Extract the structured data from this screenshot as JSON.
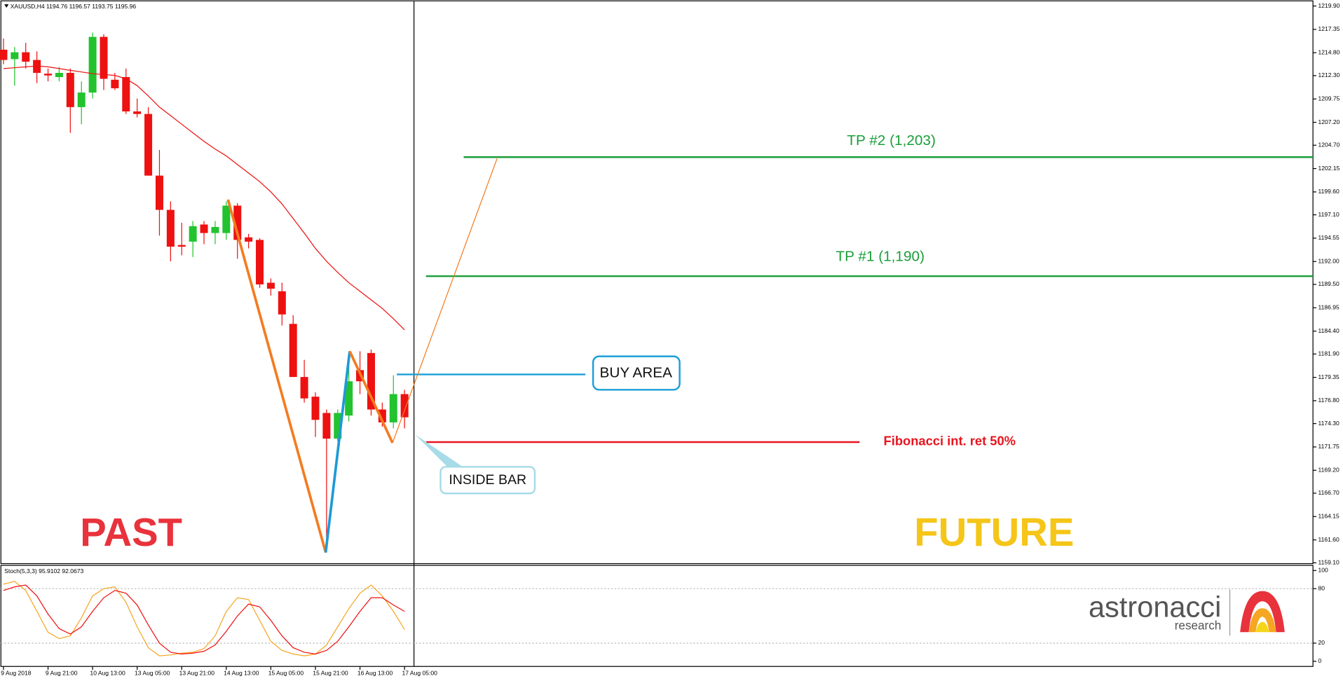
{
  "chart_data": [
    {
      "type": "candlestick",
      "title": "XAUUSD,H4  1194.76 1196.57 1193.75 1195.96",
      "categories": [
        "9 Aug 2018",
        null,
        null,
        null,
        "9 Aug 21:00",
        null,
        null,
        null,
        "10 Aug 13:00",
        null,
        null,
        null,
        "13 Aug 05:00",
        null,
        null,
        null,
        "13 Aug 21:00",
        null,
        null,
        null,
        "14 Aug 13:00",
        null,
        null,
        null,
        "15 Aug 05:00",
        null,
        null,
        null,
        "15 Aug 21:00",
        null,
        null,
        null,
        "16 Aug 13:00",
        null,
        null,
        null,
        "17 Aug 05:00"
      ],
      "open": [
        1215.13,
        1214.1,
        1214.85,
        1214.01,
        1212.51,
        1212.14,
        1212.6,
        1208.86,
        1210.45,
        1216.53,
        1211.85,
        1212.14,
        1208.39,
        1208.11,
        1201.38,
        1197.64,
        1193.8,
        1194.17,
        1196.04,
        1195.11,
        1195.11,
        1198.1,
        1194.64,
        1194.36,
        1189.68,
        1188.75,
        1185.19,
        1179.39,
        1177.24,
        1175.46,
        1172.66,
        1175.18,
        1180.14,
        1182.01,
        1175.84,
        1174.43,
        1177.52
      ],
      "high": [
        1216.35,
        1215.41,
        1215.88,
        1214.94,
        1213.07,
        1213.26,
        1213.07,
        1211.67,
        1217.0,
        1216.81,
        1212.6,
        1213.07,
        1209.8,
        1208.86,
        1204.18,
        1198.57,
        1196.23,
        1196.42,
        1196.42,
        1196.42,
        1198.57,
        1198.38,
        1195.02,
        1194.55,
        1190.15,
        1189.68,
        1186.13,
        1181.26,
        1177.71,
        1175.84,
        1175.84,
        1182.2,
        1182.2,
        1182.39,
        1176.59,
        1179.58,
        1177.99
      ],
      "low": [
        1213.54,
        1211.2,
        1213.07,
        1211.48,
        1211.67,
        1211.67,
        1206.05,
        1206.99,
        1209.8,
        1210.73,
        1210.73,
        1208.11,
        1207.74,
        1201.38,
        1194.83,
        1192.02,
        1192.68,
        1192.49,
        1193.89,
        1193.89,
        1194.36,
        1192.3,
        1193.43,
        1189.12,
        1188.28,
        1185.01,
        1179.39,
        1176.59,
        1172.84,
        1160.22,
        1172.38,
        1174.53,
        1177.52,
        1175.18,
        1173.97,
        1173.78,
        1173.78
      ],
      "close": [
        1214.01,
        1214.85,
        1213.82,
        1212.6,
        1212.32,
        1212.6,
        1208.86,
        1210.45,
        1216.53,
        1211.95,
        1210.92,
        1208.39,
        1208.11,
        1201.38,
        1197.64,
        1193.62,
        1193.62,
        1195.86,
        1195.11,
        1195.77,
        1198.1,
        1194.36,
        1194.17,
        1189.5,
        1189.03,
        1186.22,
        1179.39,
        1177.05,
        1174.71,
        1172.66,
        1175.46,
        1178.92,
        1178.92,
        1175.84,
        1174.43,
        1177.52,
        1174.99
      ],
      "up_color": "#22c32e",
      "down_color": "#ee1111",
      "moving_average": {
        "color": "#ee1111",
        "values": [
          1213.07,
          1213.16,
          1213.26,
          1213.35,
          1213.26,
          1213.07,
          1212.88,
          1212.7,
          1212.51,
          1212.42,
          1212.32,
          1211.95,
          1211.2,
          1210.08,
          1208.86,
          1207.93,
          1206.99,
          1206.05,
          1205.12,
          1204.28,
          1203.53,
          1202.59,
          1201.66,
          1200.72,
          1199.6,
          1198.29,
          1196.7,
          1195.11,
          1193.43,
          1192.02,
          1190.81,
          1189.68,
          1188.75,
          1187.81,
          1186.88,
          1185.75,
          1184.54
        ]
      },
      "ylim": [
        1159.1,
        1220.37
      ],
      "yticks": [
        {
          "value": 1219.9,
          "label": "1219.90"
        },
        {
          "value": 1217.35,
          "label": "1217.35"
        },
        {
          "value": 1214.8,
          "label": "1214.80"
        },
        {
          "value": 1212.3,
          "label": "1212.30"
        },
        {
          "value": 1209.75,
          "label": "1209.75"
        },
        {
          "value": 1207.2,
          "label": "1207.20"
        },
        {
          "value": 1204.7,
          "label": "1204.70"
        },
        {
          "value": 1202.15,
          "label": "1202.15"
        },
        {
          "value": 1199.6,
          "label": "1199.60"
        },
        {
          "value": 1197.1,
          "label": "1197.10"
        },
        {
          "value": 1194.55,
          "label": "1194.55"
        },
        {
          "value": 1192,
          "label": "1192.00"
        },
        {
          "value": 1189.5,
          "label": "1189.50"
        },
        {
          "value": 1186.95,
          "label": "1186.95"
        },
        {
          "value": 1184.4,
          "label": "1184.40"
        },
        {
          "value": 1181.9,
          "label": "1181.90"
        },
        {
          "value": 1179.35,
          "label": "1179.35"
        },
        {
          "value": 1176.8,
          "label": "1176.80"
        },
        {
          "value": 1174.3,
          "label": "1174.30"
        },
        {
          "value": 1171.75,
          "label": "1171.75"
        },
        {
          "value": 1169.2,
          "label": "1169.20"
        },
        {
          "value": 1166.7,
          "label": "1166.70"
        },
        {
          "value": 1164.15,
          "label": "1164.15"
        },
        {
          "value": 1161.6,
          "label": "1161.60"
        },
        {
          "value": 1159.1,
          "label": "1159.10"
        }
      ],
      "levels": [
        {
          "label": "TP #2 (1,203)",
          "value": 1203.4,
          "color": "#1a9e3a"
        },
        {
          "label": "TP #1 (1,190)",
          "value": 1190.4,
          "color": "#1a9e3a"
        },
        {
          "label": "BUY AREA",
          "value": 1179.67,
          "color": "#1a9fd8"
        },
        {
          "label": "Fibonacci int. ret 50%",
          "value": 1172.28,
          "color": "#e8141e"
        }
      ],
      "annotations": {
        "inside_bar": "INSIDE BAR",
        "past": "PAST",
        "future": "FUTURE"
      }
    },
    {
      "type": "line",
      "title": "Stoch(5,3,3) 95.9102 92.0673",
      "series": [
        {
          "color": "#f5a623",
          "values": [
            85,
            88,
            78,
            55,
            32,
            25,
            28,
            48,
            72,
            80,
            82,
            65,
            38,
            15,
            6,
            7,
            9,
            10,
            14,
            28,
            55,
            70,
            68,
            45,
            22,
            12,
            8,
            6,
            8,
            18,
            38,
            58,
            75,
            84,
            72,
            55,
            35
          ]
        },
        {
          "color": "#ee1111",
          "values": [
            78,
            82,
            84,
            72,
            52,
            36,
            30,
            38,
            55,
            70,
            78,
            75,
            62,
            40,
            20,
            10,
            8,
            9,
            11,
            18,
            33,
            50,
            63,
            60,
            45,
            28,
            15,
            10,
            8,
            12,
            22,
            38,
            55,
            70,
            70,
            62,
            55
          ]
        }
      ],
      "ylim": [
        0,
        100
      ],
      "yticks": [
        0,
        20,
        80,
        100
      ],
      "levels": [
        20,
        80
      ]
    }
  ],
  "logo": {
    "name": "astronacci",
    "tagline": "research"
  }
}
